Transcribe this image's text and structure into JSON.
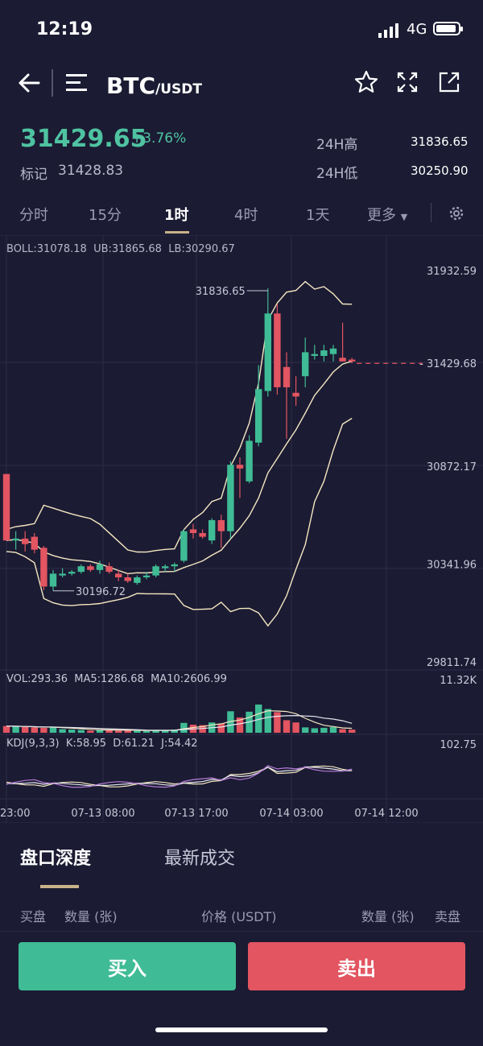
{
  "status_bar": {
    "time": "12:19",
    "network": "4G"
  },
  "header": {
    "pair": "BTC",
    "quote": "/USDT"
  },
  "ticker": {
    "price": "31429.65",
    "change": "+3.76%",
    "mark_label": "标记",
    "mark_value": "31428.83",
    "high_label": "24H高",
    "high_value": "31836.65",
    "low_label": "24H低",
    "low_value": "30250.90"
  },
  "intervals": {
    "items": [
      "分时",
      "15分",
      "1时",
      "4时",
      "1天",
      "更多"
    ],
    "active": "1时"
  },
  "indicators": {
    "boll": "BOLL:31078.18",
    "ub": "UB:31865.68",
    "lb": "LB:30290.67",
    "vol": "VOL:293.36",
    "ma5": "MA5:1286.68",
    "ma10": "MA10:2606.99",
    "kdj": "KDJ(9,3,3)",
    "k": "K:58.95",
    "d": "D:61.21",
    "j": "J:54.42"
  },
  "chart_data": {
    "type": "candlestick",
    "y_ticks": [
      "31932.59",
      "30872.17",
      "30341.96",
      "29811.74"
    ],
    "ylim": [
      29811.74,
      31932.59
    ],
    "current_price_label": "31429.68",
    "high_annotation": "31836.65",
    "low_annotation": "30196.72",
    "vol_max_label": "11.32K",
    "kdj_max_label": "102.75",
    "x_tick_labels": [
      "23:00",
      "07-13 08:00",
      "07-13 17:00",
      "07-14 03:00",
      "07-14 12:00"
    ],
    "up_color": "#3fbc95",
    "down_color": "#e25561",
    "candles": [
      {
        "o": 30830,
        "h": 30830,
        "l": 30470,
        "c": 30470
      },
      {
        "o": 30470,
        "h": 30520,
        "l": 30420,
        "c": 30480
      },
      {
        "o": 30480,
        "h": 30520,
        "l": 30410,
        "c": 30450
      },
      {
        "o": 30490,
        "h": 30510,
        "l": 30400,
        "c": 30420
      },
      {
        "o": 30430,
        "h": 30440,
        "l": 30200,
        "c": 30220
      },
      {
        "o": 30220,
        "h": 30310,
        "l": 30197,
        "c": 30290
      },
      {
        "o": 30280,
        "h": 30320,
        "l": 30270,
        "c": 30290
      },
      {
        "o": 30290,
        "h": 30310,
        "l": 30280,
        "c": 30300
      },
      {
        "o": 30300,
        "h": 30340,
        "l": 30290,
        "c": 30330
      },
      {
        "o": 30330,
        "h": 30340,
        "l": 30300,
        "c": 30310
      },
      {
        "o": 30310,
        "h": 30360,
        "l": 30290,
        "c": 30340
      },
      {
        "o": 30330,
        "h": 30350,
        "l": 30290,
        "c": 30300
      },
      {
        "o": 30290,
        "h": 30310,
        "l": 30250,
        "c": 30270
      },
      {
        "o": 30270,
        "h": 30290,
        "l": 30240,
        "c": 30250
      },
      {
        "o": 30240,
        "h": 30280,
        "l": 30230,
        "c": 30270
      },
      {
        "o": 30270,
        "h": 30300,
        "l": 30260,
        "c": 30280
      },
      {
        "o": 30280,
        "h": 30340,
        "l": 30270,
        "c": 30330
      },
      {
        "o": 30320,
        "h": 30340,
        "l": 30300,
        "c": 30330
      },
      {
        "o": 30330,
        "h": 30350,
        "l": 30300,
        "c": 30340
      },
      {
        "o": 30360,
        "h": 30530,
        "l": 30350,
        "c": 30520
      },
      {
        "o": 30530,
        "h": 30560,
        "l": 30480,
        "c": 30510
      },
      {
        "o": 30510,
        "h": 30530,
        "l": 30480,
        "c": 30490
      },
      {
        "o": 30470,
        "h": 30590,
        "l": 30450,
        "c": 30580
      },
      {
        "o": 30580,
        "h": 30610,
        "l": 30430,
        "c": 30520
      },
      {
        "o": 30520,
        "h": 30900,
        "l": 30480,
        "c": 30880
      },
      {
        "o": 30880,
        "h": 30920,
        "l": 30700,
        "c": 30860
      },
      {
        "o": 30790,
        "h": 31040,
        "l": 30780,
        "c": 31010
      },
      {
        "o": 31000,
        "h": 31420,
        "l": 30980,
        "c": 31290
      },
      {
        "o": 31280,
        "h": 31836,
        "l": 31250,
        "c": 31700
      },
      {
        "o": 31700,
        "h": 31750,
        "l": 31260,
        "c": 31300
      },
      {
        "o": 31410,
        "h": 31490,
        "l": 31020,
        "c": 31300
      },
      {
        "o": 31270,
        "h": 31360,
        "l": 31200,
        "c": 31250
      },
      {
        "o": 31360,
        "h": 31570,
        "l": 31300,
        "c": 31490
      },
      {
        "o": 31470,
        "h": 31530,
        "l": 31450,
        "c": 31480
      },
      {
        "o": 31470,
        "h": 31530,
        "l": 31440,
        "c": 31500
      },
      {
        "o": 31480,
        "h": 31530,
        "l": 31440,
        "c": 31510
      },
      {
        "o": 31460,
        "h": 31650,
        "l": 31440,
        "c": 31440
      },
      {
        "o": 31450,
        "h": 31460,
        "l": 31430,
        "c": 31440
      }
    ],
    "volume_max": 11320,
    "volumes": [
      1500,
      1400,
      1300,
      1200,
      1100,
      1300,
      800,
      700,
      600,
      500,
      700,
      600,
      500,
      600,
      500,
      400,
      600,
      500,
      700,
      2200,
      1800,
      1700,
      2300,
      2000,
      4800,
      3400,
      4700,
      6300,
      5300,
      4600,
      2800,
      2300,
      1200,
      1000,
      1100,
      1300,
      800,
      700
    ]
  },
  "bottom_tabs": {
    "depth": "盘口深度",
    "trades": "最新成交"
  },
  "orderbook_header": {
    "c1": "买盘",
    "c2": "数量 (张)",
    "c3": "价格 (USDT)",
    "c4": "数量 (张)",
    "c5": "卖盘"
  },
  "actions": {
    "buy": "买入",
    "sell": "卖出"
  }
}
